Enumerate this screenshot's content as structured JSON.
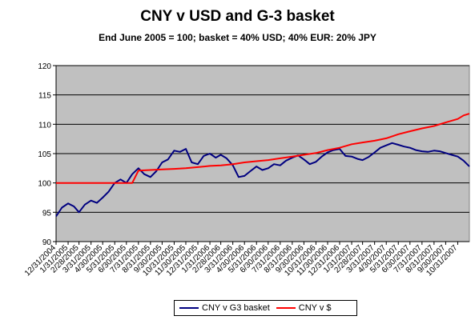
{
  "chart_data": {
    "type": "line",
    "title": "CNY v USD and G-3 basket",
    "subtitle": "End June 2005 = 100; basket = 40% USD; 40% EUR: 20% JPY",
    "xlabel": "",
    "ylabel": "",
    "ylim": [
      90,
      120
    ],
    "yticks": [
      90,
      95,
      100,
      105,
      110,
      115,
      120
    ],
    "xlim": [
      "12/31/2004",
      "11/30/2007"
    ],
    "x_tick_labels": [
      "12/31/2004",
      "1/31/2005",
      "2/28/2005",
      "3/31/2005",
      "4/30/2005",
      "5/31/2005",
      "6/30/2005",
      "7/31/2005",
      "8/31/2005",
      "9/30/2005",
      "10/31/2005",
      "11/30/2005",
      "12/31/2005",
      "1/31/2006",
      "2/28/2006",
      "3/31/2006",
      "4/30/2006",
      "5/31/2006",
      "6/30/2006",
      "7/31/2006",
      "8/31/2006",
      "9/30/2006",
      "10/31/2006",
      "11/30/2006",
      "12/31/2006",
      "1/31/2007",
      "2/28/2007",
      "3/31/2007",
      "4/30/2007",
      "5/31/2007",
      "6/30/2007",
      "7/31/2007",
      "8/31/2007",
      "9/30/2007",
      "10/31/2007"
    ],
    "grid": true,
    "plot_background": "#c0c0c0",
    "legend_position": "bottom",
    "series": [
      {
        "name": "CNY v G3 basket",
        "color": "#000080",
        "x": [
          "12/31/2004",
          "1/15/2005",
          "1/31/2005",
          "2/15/2005",
          "2/28/2005",
          "3/15/2005",
          "3/31/2005",
          "4/15/2005",
          "4/30/2005",
          "5/15/2005",
          "5/31/2005",
          "6/15/2005",
          "6/30/2005",
          "7/15/2005",
          "7/31/2005",
          "8/15/2005",
          "8/31/2005",
          "9/15/2005",
          "9/30/2005",
          "10/15/2005",
          "10/31/2005",
          "11/15/2005",
          "11/30/2005",
          "12/15/2005",
          "12/31/2005",
          "1/15/2006",
          "1/31/2006",
          "2/15/2006",
          "2/28/2006",
          "3/15/2006",
          "3/31/2006",
          "4/15/2006",
          "4/30/2006",
          "5/15/2006",
          "5/31/2006",
          "6/15/2006",
          "6/30/2006",
          "7/15/2006",
          "7/31/2006",
          "8/15/2006",
          "8/31/2006",
          "9/15/2006",
          "9/30/2006",
          "10/15/2006",
          "10/31/2006",
          "11/15/2006",
          "11/30/2006",
          "12/15/2006",
          "12/31/2006",
          "1/15/2007",
          "1/31/2007",
          "2/15/2007",
          "2/28/2007",
          "3/15/2007",
          "3/31/2007",
          "4/15/2007",
          "4/30/2007",
          "5/15/2007",
          "5/31/2007",
          "6/15/2007",
          "6/30/2007",
          "7/15/2007",
          "7/31/2007",
          "8/15/2007",
          "8/31/2007",
          "9/15/2007",
          "9/30/2007",
          "10/15/2007",
          "10/31/2007",
          "11/15/2007",
          "11/30/2007"
        ],
        "values": [
          94.3,
          95.8,
          96.5,
          96.0,
          95.0,
          96.3,
          97.0,
          96.6,
          97.5,
          98.5,
          100.0,
          100.6,
          100.0,
          101.5,
          102.5,
          101.5,
          101.0,
          102.0,
          103.5,
          104.0,
          105.5,
          105.3,
          105.8,
          103.5,
          103.2,
          104.6,
          105.0,
          104.3,
          104.8,
          104.2,
          103.0,
          101.0,
          101.2,
          102.0,
          102.8,
          102.2,
          102.5,
          103.2,
          103.0,
          103.8,
          104.3,
          104.7,
          104.0,
          103.2,
          103.6,
          104.5,
          105.2,
          105.6,
          105.8,
          104.6,
          104.5,
          104.1,
          103.9,
          104.4,
          105.2,
          106.0,
          106.4,
          106.8,
          106.5,
          106.2,
          106.0,
          105.6,
          105.4,
          105.3,
          105.5,
          105.4,
          105.1,
          104.8,
          104.5,
          103.8,
          102.8
        ]
      },
      {
        "name": "CNY v $",
        "color": "#ff0000",
        "x": [
          "12/31/2004",
          "1/31/2005",
          "2/28/2005",
          "3/31/2005",
          "4/30/2005",
          "5/31/2005",
          "6/30/2005",
          "7/15/2005",
          "7/31/2005",
          "8/31/2005",
          "9/30/2005",
          "10/31/2005",
          "11/30/2005",
          "12/31/2005",
          "1/31/2006",
          "2/28/2006",
          "3/31/2006",
          "4/30/2006",
          "5/31/2006",
          "6/30/2006",
          "7/31/2006",
          "8/31/2006",
          "9/30/2006",
          "10/31/2006",
          "11/30/2006",
          "12/31/2006",
          "1/31/2007",
          "2/28/2007",
          "3/31/2007",
          "4/30/2007",
          "5/31/2007",
          "6/30/2007",
          "7/31/2007",
          "8/31/2007",
          "9/30/2007",
          "10/31/2007",
          "11/15/2007",
          "11/30/2007"
        ],
        "values": [
          100.0,
          100.0,
          100.0,
          100.0,
          100.0,
          100.0,
          100.0,
          100.0,
          102.1,
          102.2,
          102.3,
          102.4,
          102.5,
          102.7,
          102.9,
          103.0,
          103.2,
          103.5,
          103.7,
          103.9,
          104.2,
          104.5,
          104.8,
          105.1,
          105.6,
          106.0,
          106.6,
          106.9,
          107.2,
          107.6,
          108.3,
          108.8,
          109.3,
          109.7,
          110.3,
          110.9,
          111.5,
          111.8
        ]
      }
    ]
  }
}
